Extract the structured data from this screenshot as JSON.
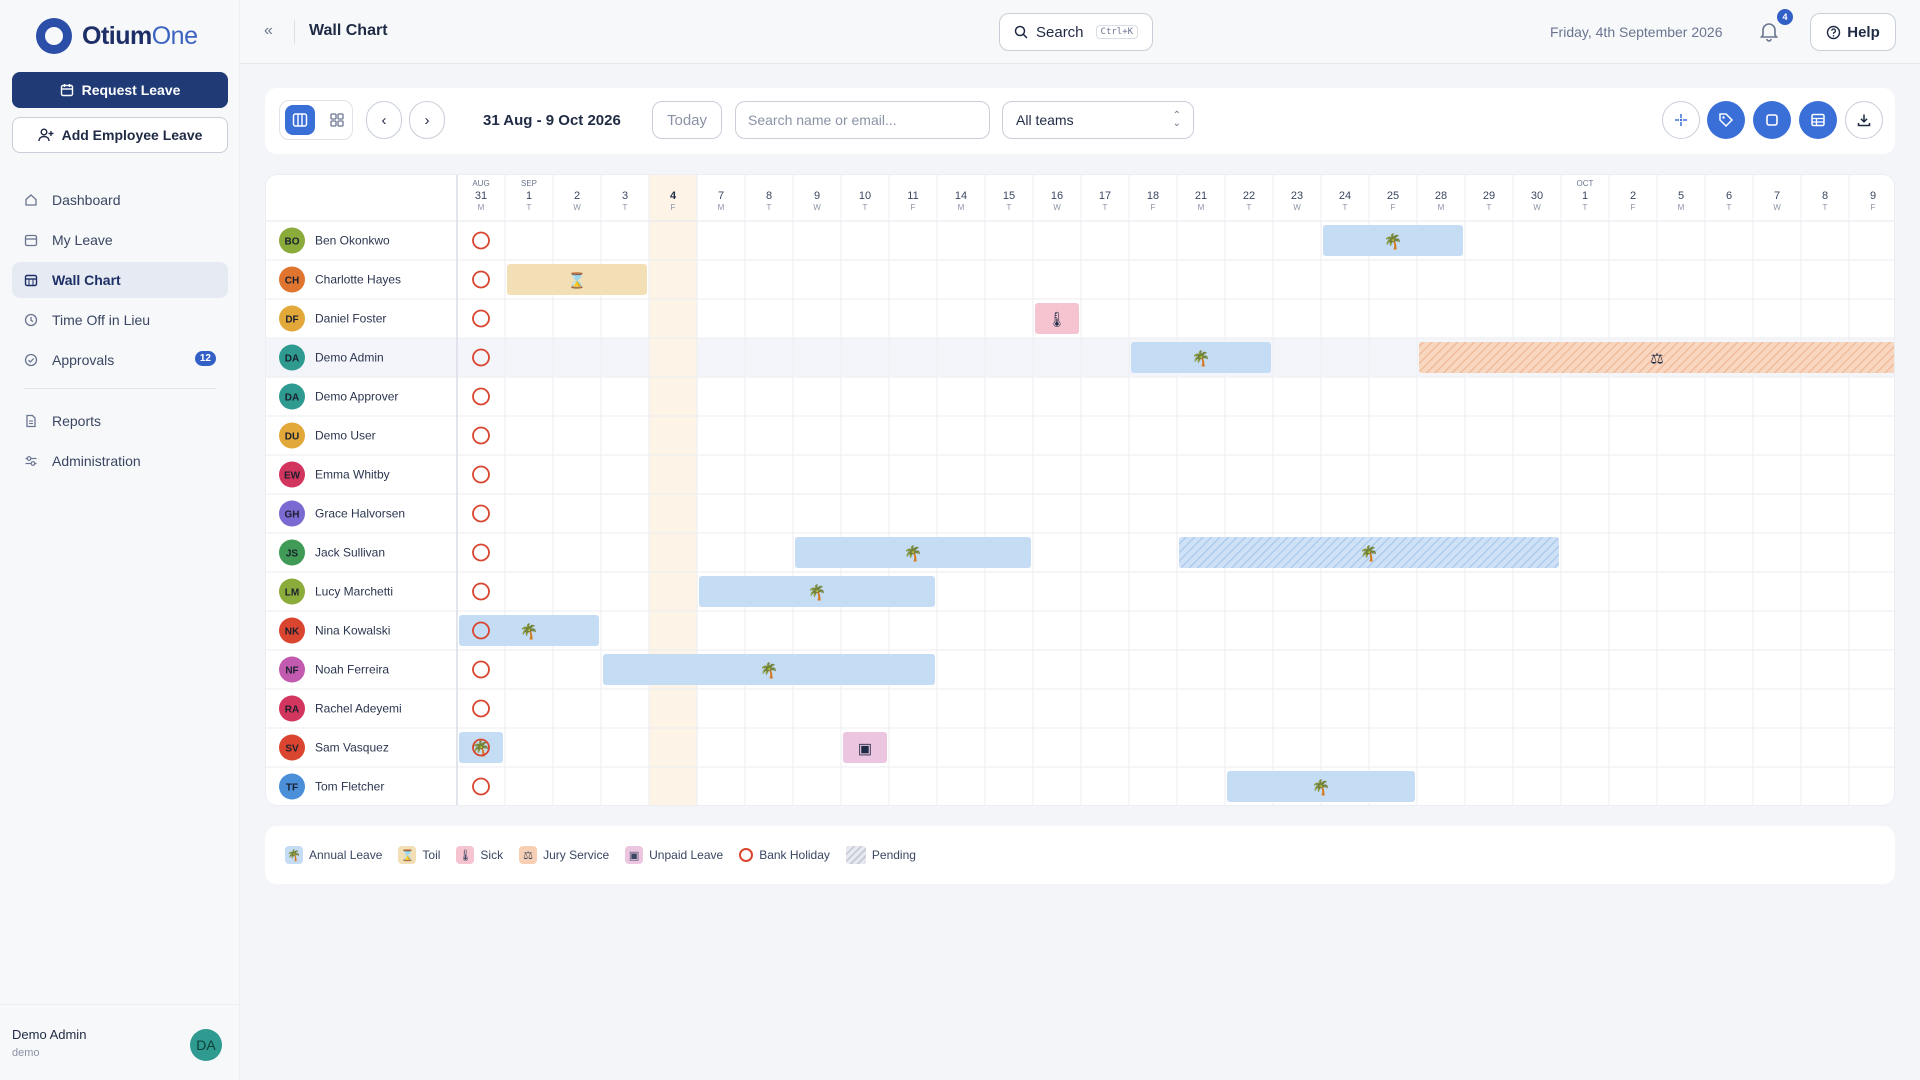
{
  "app": {
    "name_bold": "Otium",
    "name_light": "One"
  },
  "sidebar": {
    "request_leave": "Request Leave",
    "add_employee_leave": "Add Employee Leave",
    "items": [
      {
        "label": "Dashboard",
        "icon": "home-icon"
      },
      {
        "label": "My Leave",
        "icon": "calendar-icon"
      },
      {
        "label": "Wall Chart",
        "icon": "calendar-grid-icon",
        "active": true
      },
      {
        "label": "Time Off in Lieu",
        "icon": "clock-icon"
      },
      {
        "label": "Approvals",
        "icon": "check-circle-icon",
        "badge": "12"
      },
      {
        "label": "Reports",
        "icon": "document-icon"
      },
      {
        "label": "Administration",
        "icon": "sliders-icon"
      }
    ],
    "user": {
      "name": "Demo Admin",
      "role": "demo",
      "initials": "DA"
    }
  },
  "header": {
    "title": "Wall Chart",
    "search_label": "Search",
    "search_shortcut": "Ctrl+K",
    "date": "Friday, 4th September 2026",
    "notification_count": "4",
    "help_label": "Help"
  },
  "toolbar": {
    "range": "31 Aug - 9 Oct 2026",
    "today": "Today",
    "search_placeholder": "Search name or email...",
    "team_filter": "All teams"
  },
  "chart_data": {
    "type": "table",
    "days": [
      {
        "d": "31",
        "w": "M",
        "m": "AUG"
      },
      {
        "d": "1",
        "w": "T",
        "m": "SEP"
      },
      {
        "d": "2",
        "w": "W"
      },
      {
        "d": "3",
        "w": "T"
      },
      {
        "d": "4",
        "w": "F",
        "today": true
      },
      {
        "d": "7",
        "w": "M"
      },
      {
        "d": "8",
        "w": "T"
      },
      {
        "d": "9",
        "w": "W"
      },
      {
        "d": "10",
        "w": "T"
      },
      {
        "d": "11",
        "w": "F"
      },
      {
        "d": "14",
        "w": "M"
      },
      {
        "d": "15",
        "w": "T"
      },
      {
        "d": "16",
        "w": "W"
      },
      {
        "d": "17",
        "w": "T"
      },
      {
        "d": "18",
        "w": "F"
      },
      {
        "d": "21",
        "w": "M"
      },
      {
        "d": "22",
        "w": "T"
      },
      {
        "d": "23",
        "w": "W"
      },
      {
        "d": "24",
        "w": "T"
      },
      {
        "d": "25",
        "w": "F"
      },
      {
        "d": "28",
        "w": "M"
      },
      {
        "d": "29",
        "w": "T"
      },
      {
        "d": "30",
        "w": "W"
      },
      {
        "d": "1",
        "w": "T",
        "m": "OCT"
      },
      {
        "d": "2",
        "w": "F"
      },
      {
        "d": "5",
        "w": "M"
      },
      {
        "d": "6",
        "w": "T"
      },
      {
        "d": "7",
        "w": "W"
      },
      {
        "d": "8",
        "w": "T"
      },
      {
        "d": "9",
        "w": "F"
      }
    ],
    "bank_holiday_day_index": 0,
    "employees": [
      {
        "initials": "BO",
        "name": "Ben Okonkwo",
        "color": "#8bab3b",
        "leave": [
          {
            "type": "annual",
            "start": 18,
            "end": 20
          }
        ]
      },
      {
        "initials": "CH",
        "name": "Charlotte Hayes",
        "color": "#e0752f",
        "leave": [
          {
            "type": "toil",
            "start": 1,
            "end": 3
          }
        ]
      },
      {
        "initials": "DF",
        "name": "Daniel Foster",
        "color": "#e2a93a",
        "leave": [
          {
            "type": "sick",
            "start": 12,
            "end": 12
          }
        ]
      },
      {
        "initials": "DA",
        "name": "Demo Admin",
        "color": "#2f9a8f",
        "highlight": true,
        "leave": [
          {
            "type": "annual",
            "start": 14,
            "end": 16
          },
          {
            "type": "jury_pending",
            "start": 20,
            "end": 29
          }
        ]
      },
      {
        "initials": "DA",
        "name": "Demo Approver",
        "color": "#2f9a8f",
        "leave": []
      },
      {
        "initials": "DU",
        "name": "Demo User",
        "color": "#e2a93a",
        "leave": []
      },
      {
        "initials": "EW",
        "name": "Emma Whitby",
        "color": "#d2355e",
        "leave": []
      },
      {
        "initials": "GH",
        "name": "Grace Halvorsen",
        "color": "#7b6ad1",
        "leave": []
      },
      {
        "initials": "JS",
        "name": "Jack Sullivan",
        "color": "#3f9b55",
        "leave": [
          {
            "type": "annual",
            "start": 7,
            "end": 11
          },
          {
            "type": "annual_pending",
            "start": 15,
            "end": 22
          }
        ]
      },
      {
        "initials": "LM",
        "name": "Lucy Marchetti",
        "color": "#8bab3b",
        "leave": [
          {
            "type": "annual",
            "start": 5,
            "end": 9
          }
        ]
      },
      {
        "initials": "NK",
        "name": "Nina Kowalski",
        "color": "#d9452f",
        "leave": [
          {
            "type": "annual",
            "start": 0,
            "end": 2
          }
        ]
      },
      {
        "initials": "NF",
        "name": "Noah Ferreira",
        "color": "#c25bb0",
        "leave": [
          {
            "type": "annual",
            "start": 3,
            "end": 9
          }
        ]
      },
      {
        "initials": "RA",
        "name": "Rachel Adeyemi",
        "color": "#d2355e",
        "leave": []
      },
      {
        "initials": "SV",
        "name": "Sam Vasquez",
        "color": "#d9452f",
        "leave": [
          {
            "type": "annual",
            "start": 0,
            "end": 0
          },
          {
            "type": "unpaid",
            "start": 8,
            "end": 8
          }
        ]
      },
      {
        "initials": "TF",
        "name": "Tom Fletcher",
        "color": "#4a8fd8",
        "leave": [
          {
            "type": "annual",
            "start": 16,
            "end": 19
          }
        ]
      }
    ]
  },
  "legend": [
    {
      "label": "Annual Leave",
      "icon": "palm-tree-icon",
      "color": "#c5dcf5"
    },
    {
      "label": "Toil",
      "icon": "hourglass-icon",
      "color": "#f3dfb6"
    },
    {
      "label": "Sick",
      "icon": "thermometer-icon",
      "color": "#f6c3d0"
    },
    {
      "label": "Jury Service",
      "icon": "scales-icon",
      "color": "#f7cfb4"
    },
    {
      "label": "Unpaid Leave",
      "icon": "calendar-x-icon",
      "color": "#ecc6e0"
    },
    {
      "label": "Bank Holiday",
      "icon": "circle-icon",
      "color": "#d9452f"
    },
    {
      "label": "Pending",
      "icon": "hatch-icon",
      "color": "#c8ccd6"
    }
  ]
}
